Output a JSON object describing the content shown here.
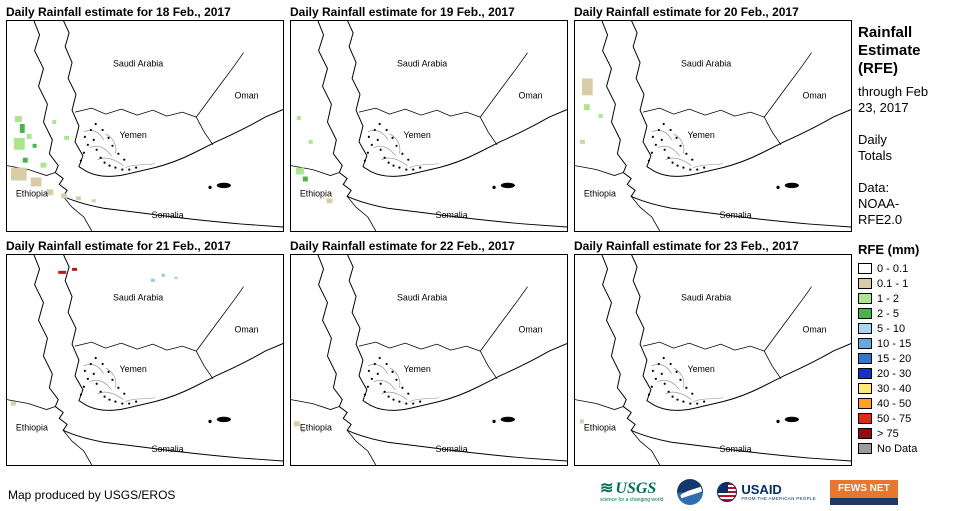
{
  "panels": [
    {
      "title": "Daily Rainfall estimate for 18 Feb., 2017",
      "spots": [
        [
          8,
          96,
          7,
          6,
          "#A9E68C"
        ],
        [
          13,
          104,
          5,
          9,
          "#46B446"
        ],
        [
          20,
          114,
          5,
          5,
          "#A9E68C"
        ],
        [
          7,
          118,
          11,
          12,
          "#A9E68C"
        ],
        [
          26,
          124,
          4,
          4,
          "#46B446"
        ],
        [
          46,
          100,
          4,
          4,
          "#A9E68C"
        ],
        [
          58,
          116,
          5,
          4,
          "#A9E68C"
        ],
        [
          16,
          138,
          5,
          5,
          "#46B446"
        ],
        [
          34,
          143,
          6,
          5,
          "#A9E68C"
        ],
        [
          4,
          148,
          16,
          13,
          "#D9CDA8"
        ],
        [
          24,
          158,
          11,
          9,
          "#D9CDA8"
        ],
        [
          40,
          170,
          7,
          6,
          "#D9CDA8"
        ],
        [
          55,
          174,
          6,
          5,
          "#D9CDA8"
        ],
        [
          70,
          177,
          5,
          4,
          "#D9CDA8"
        ],
        [
          86,
          180,
          4,
          3,
          "#D9CDA8"
        ]
      ]
    },
    {
      "title": "Daily Rainfall estimate for 19 Feb., 2017",
      "spots": [
        [
          6,
          96,
          4,
          4,
          "#A9E68C"
        ],
        [
          18,
          120,
          4,
          4,
          "#A9E68C"
        ],
        [
          5,
          148,
          8,
          7,
          "#A9E68C"
        ],
        [
          12,
          157,
          5,
          5,
          "#46B446"
        ],
        [
          36,
          179,
          6,
          5,
          "#D9CDA8"
        ]
      ]
    },
    {
      "title": "Daily Rainfall estimate for 20 Feb., 2017",
      "spots": [
        [
          7,
          58,
          11,
          17,
          "#D9CDA8"
        ],
        [
          9,
          84,
          6,
          6,
          "#A9E68C"
        ],
        [
          24,
          94,
          4,
          4,
          "#A9E68C"
        ],
        [
          5,
          120,
          5,
          4,
          "#D9CDA8"
        ]
      ]
    },
    {
      "title": "Daily Rainfall estimate for 21 Feb., 2017",
      "spots": [
        [
          52,
          16,
          8,
          3,
          "#C01414"
        ],
        [
          66,
          13,
          5,
          3,
          "#C01414"
        ],
        [
          146,
          24,
          4,
          3,
          "#8CC8F0"
        ],
        [
          157,
          19,
          3,
          3,
          "#8CC8F0"
        ],
        [
          170,
          22,
          3,
          2,
          "#8CC8F0"
        ],
        [
          4,
          148,
          5,
          4,
          "#D9CDA8"
        ]
      ]
    },
    {
      "title": "Daily Rainfall estimate for 22 Feb., 2017",
      "spots": [
        [
          3,
          168,
          6,
          5,
          "#D9CDA8"
        ],
        [
          10,
          176,
          4,
          3,
          "#D9CDA8"
        ]
      ]
    },
    {
      "title": "Daily Rainfall estimate for 23 Feb., 2017",
      "spots": [
        [
          5,
          166,
          4,
          4,
          "#D9CDA8"
        ]
      ]
    }
  ],
  "map_labels": {
    "saudi_arabia": "Saudi Arabia",
    "oman": "Oman",
    "yemen": "Yemen",
    "ethiopia": "Ethiopia",
    "somalia": "Somalia"
  },
  "sidebar": {
    "title": "Rainfall Estimate (RFE)",
    "through": "through Feb 23, 2017",
    "totals": "Daily Totals",
    "data_label": "Data: NOAA-RFE2.0",
    "legend_title": "RFE (mm)",
    "legend": [
      {
        "label": "0 - 0.1",
        "color": "#FFFFFF"
      },
      {
        "label": "0.1 - 1",
        "color": "#D9CDA8"
      },
      {
        "label": "1 - 2",
        "color": "#A9E68C"
      },
      {
        "label": "2 - 5",
        "color": "#46B446"
      },
      {
        "label": "5 - 10",
        "color": "#AAD5F2"
      },
      {
        "label": "10 - 15",
        "color": "#64AAE1"
      },
      {
        "label": "15 - 20",
        "color": "#2E78D2"
      },
      {
        "label": "20 - 30",
        "color": "#1432C8"
      },
      {
        "label": "30 - 40",
        "color": "#FFE873"
      },
      {
        "label": "40 - 50",
        "color": "#FFA01E"
      },
      {
        "label": "50 - 75",
        "color": "#E02814"
      },
      {
        "label": "> 75",
        "color": "#8C1010"
      },
      {
        "label": "No Data",
        "color": "#9C9C9C"
      }
    ]
  },
  "footer": {
    "credit": "Map produced by USGS/EROS",
    "logos": {
      "usgs": {
        "text": "USGS",
        "tagline": "science for a changing world"
      },
      "usaid": {
        "text": "USAID",
        "tagline": "FROM THE AMERICAN PEOPLE"
      },
      "fewsnet": {
        "text": "FEWS NET"
      }
    }
  }
}
